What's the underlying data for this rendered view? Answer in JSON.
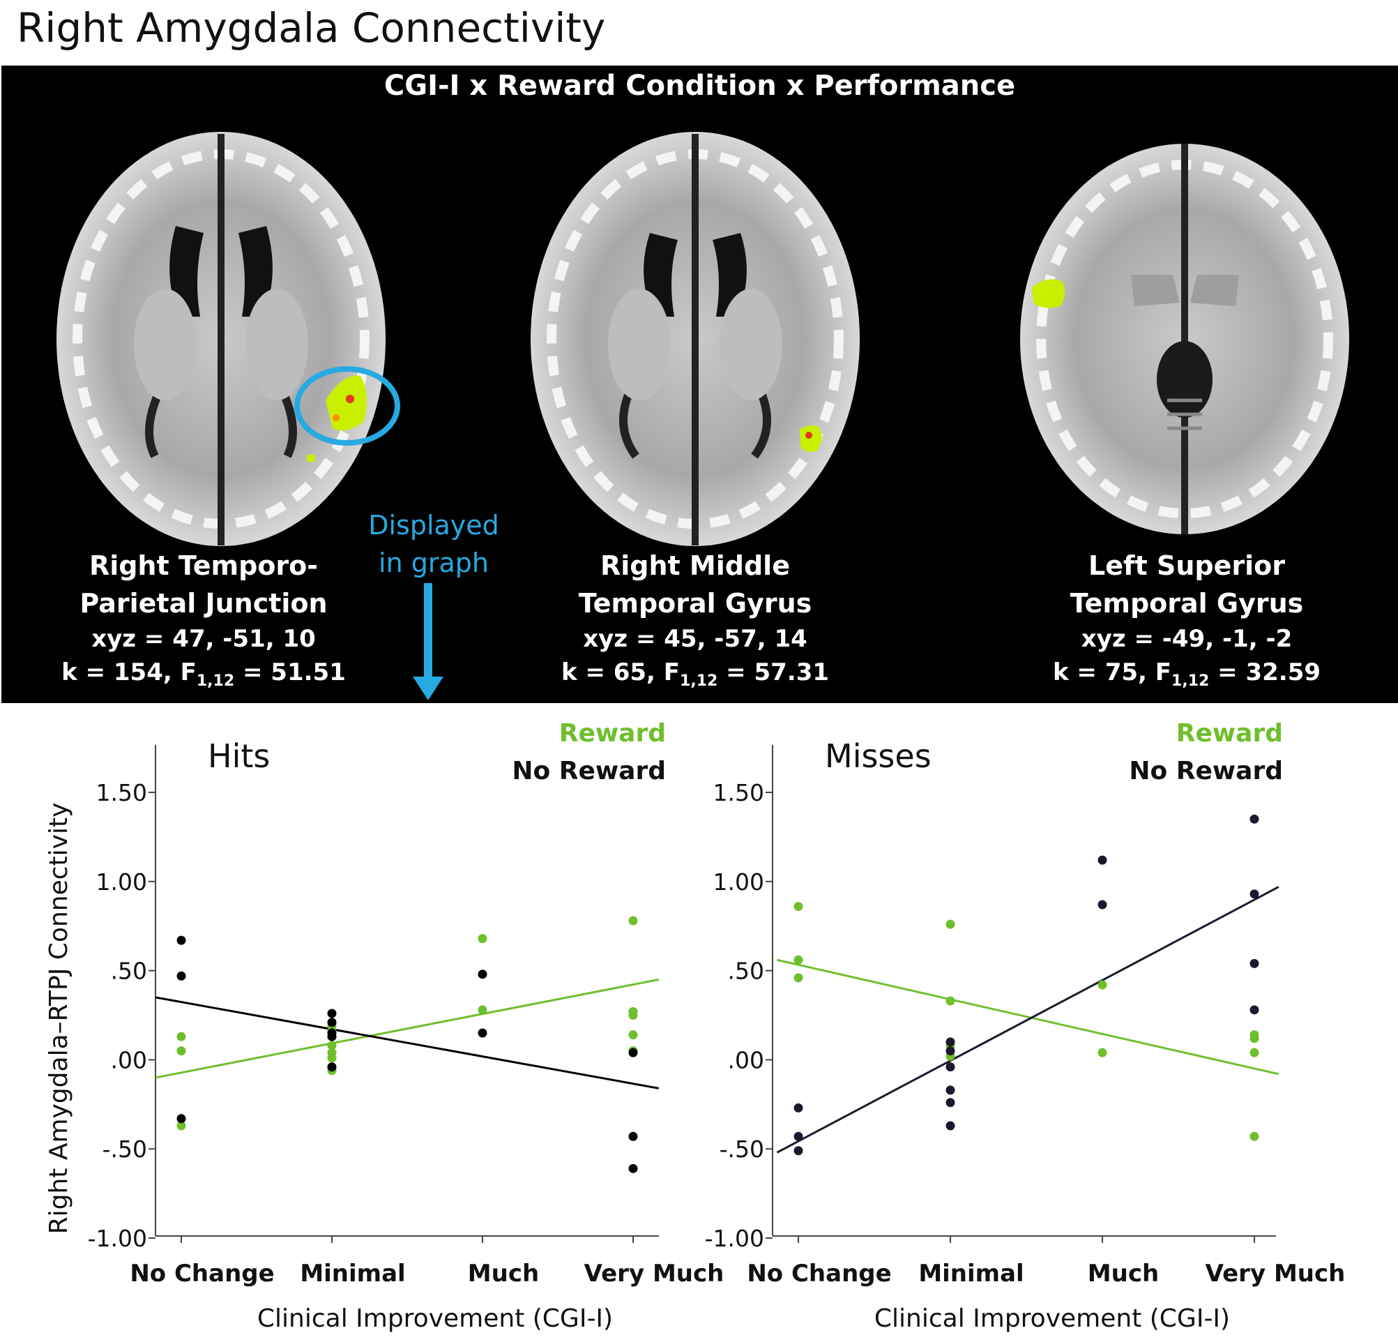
{
  "figure": {
    "title": "Right Amygdala Connectivity",
    "heading": "CGI-I x Reward Condition x Performance",
    "graph_note": [
      "Displayed",
      "in graph"
    ],
    "regions": [
      {
        "name_line1": "Right Temporo-",
        "name_line2": "Parietal Junction",
        "xyz": "xyz = 47, -51, 10",
        "stats_prefix": "k = 154, F",
        "stats_sub": "1,12",
        "stats_value": " = 51.51"
      },
      {
        "name_line1": "Right Middle",
        "name_line2": "Temporal Gyrus",
        "xyz": "xyz = 45, -57, 14",
        "stats_prefix": "k = 65, F",
        "stats_sub": "1,12",
        "stats_value": " = 57.31"
      },
      {
        "name_line1": "Left Superior",
        "name_line2": "Temporal Gyrus",
        "xyz": "xyz = -49, -1, -2",
        "stats_prefix": "k = 75, F",
        "stats_sub": "1,12",
        "stats_value": " = 32.59"
      }
    ],
    "colors": {
      "reward": "#6fbe2c",
      "no_reward": "#000000",
      "annotation": "#27a9e1",
      "activation": "#c8f000"
    }
  },
  "chart_data": [
    {
      "type": "scatter",
      "title": "Hits",
      "xlabel": "Clinical Improvement (CGI-I)",
      "ylabel": "Right Amygdala–RTPJ Connectivity",
      "categories": [
        "No Change",
        "Minimal",
        "Much",
        "Very Much"
      ],
      "y_ticks": [
        "1.50",
        "1.00",
        ".50",
        ".00",
        "-.50",
        "-1.00"
      ],
      "ylim": [
        -1.0,
        1.5
      ],
      "series": [
        {
          "name": "Reward",
          "color": "#6fbe2c",
          "points": [
            [
              0,
              0.13
            ],
            [
              0,
              0.05
            ],
            [
              0,
              -0.37
            ],
            [
              1,
              0.19
            ],
            [
              1,
              0.16
            ],
            [
              1,
              0.08
            ],
            [
              1,
              0.04
            ],
            [
              1,
              0.01
            ],
            [
              1,
              -0.06
            ],
            [
              2,
              0.68
            ],
            [
              2,
              0.28
            ],
            [
              3,
              0.78
            ],
            [
              3,
              0.27
            ],
            [
              3,
              0.25
            ],
            [
              3,
              0.14
            ],
            [
              3,
              0.05
            ]
          ],
          "fit": [
            [
              -0.17,
              -0.1
            ],
            [
              3.17,
              0.45
            ]
          ]
        },
        {
          "name": "No Reward",
          "color": "#000000",
          "points": [
            [
              0,
              0.67
            ],
            [
              0,
              0.47
            ],
            [
              0,
              -0.33
            ],
            [
              1,
              0.26
            ],
            [
              1,
              0.21
            ],
            [
              1,
              0.15
            ],
            [
              1,
              0.13
            ],
            [
              1,
              -0.04
            ],
            [
              2,
              0.48
            ],
            [
              2,
              0.15
            ],
            [
              3,
              0.04
            ],
            [
              3,
              -0.43
            ],
            [
              3,
              -0.61
            ]
          ],
          "fit": [
            [
              -0.17,
              0.35
            ],
            [
              3.17,
              -0.16
            ]
          ]
        }
      ],
      "legend": "top-right",
      "grid": false
    },
    {
      "type": "scatter",
      "title": "Misses",
      "xlabel": "Clinical Improvement (CGI-I)",
      "ylabel": "",
      "categories": [
        "No Change",
        "Minimal",
        "Much",
        "Very Much"
      ],
      "y_ticks": [
        "1.50",
        "1.00",
        ".50",
        ".00",
        "-.50",
        "-1.00"
      ],
      "ylim": [
        -1.0,
        1.5
      ],
      "series": [
        {
          "name": "Reward",
          "color": "#6fbe2c",
          "points": [
            [
              0,
              0.86
            ],
            [
              0,
              0.56
            ],
            [
              0,
              0.46
            ],
            [
              1,
              0.76
            ],
            [
              1,
              0.33
            ],
            [
              1,
              0.08
            ],
            [
              1,
              0.02
            ],
            [
              2,
              0.42
            ],
            [
              2,
              0.04
            ],
            [
              3,
              0.14
            ],
            [
              3,
              0.12
            ],
            [
              3,
              0.04
            ],
            [
              3,
              -0.43
            ]
          ],
          "fit": [
            [
              -0.14,
              0.56
            ],
            [
              3.16,
              -0.08
            ]
          ]
        },
        {
          "name": "No Reward",
          "color": "#1a1a2e",
          "points": [
            [
              0,
              -0.27
            ],
            [
              0,
              -0.43
            ],
            [
              0,
              -0.51
            ],
            [
              1,
              0.1
            ],
            [
              1,
              0.05
            ],
            [
              1,
              -0.04
            ],
            [
              1,
              -0.17
            ],
            [
              1,
              -0.24
            ],
            [
              1,
              -0.37
            ],
            [
              2,
              1.12
            ],
            [
              2,
              0.87
            ],
            [
              3,
              1.35
            ],
            [
              3,
              0.93
            ],
            [
              3,
              0.54
            ],
            [
              3,
              0.28
            ]
          ],
          "fit": [
            [
              -0.14,
              -0.52
            ],
            [
              3.16,
              0.97
            ]
          ]
        }
      ],
      "legend": "top-right",
      "grid": false
    }
  ]
}
